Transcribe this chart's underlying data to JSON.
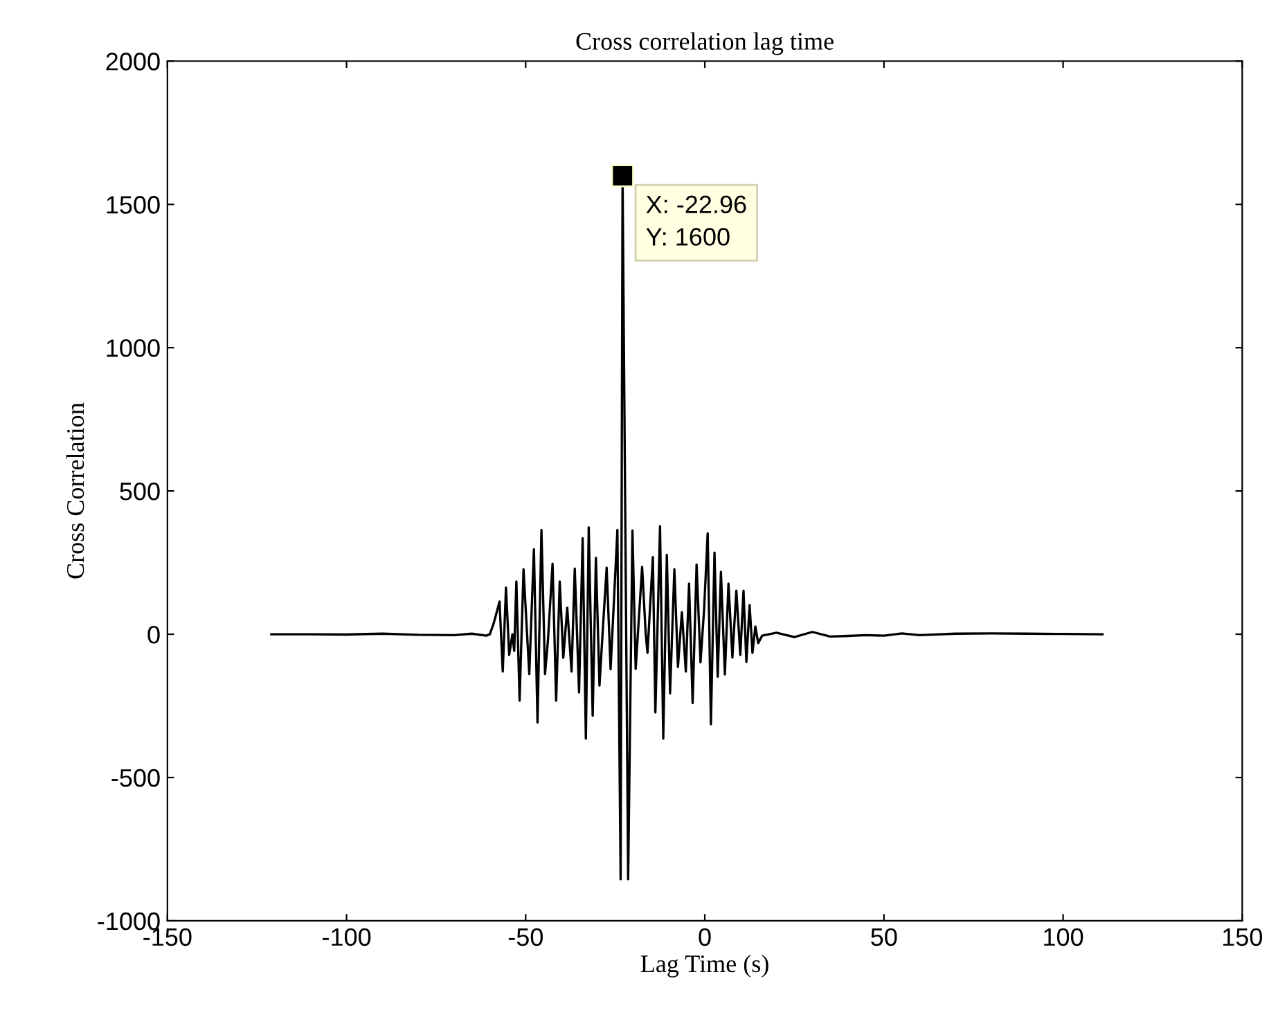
{
  "chart_data": {
    "type": "line",
    "title": "Cross correlation lag time",
    "xlabel": "Lag Time (s)",
    "ylabel": "Cross Correlation",
    "series": [
      {
        "color": "#000000",
        "x": [
          -121,
          -110,
          -100,
          -90,
          -80,
          -70,
          -65,
          -61,
          -60,
          -58.9,
          -57.3,
          -56.4,
          -55.5,
          -54.6,
          -53.7,
          -53.2,
          -52.6,
          -51.7,
          -50.6,
          -49.0,
          -47.7,
          -46.7,
          -45.6,
          -44.6,
          -43.8,
          -42.5,
          -41.5,
          -40.5,
          -39.5,
          -38.4,
          -37.2,
          -36.3,
          -35.1,
          -34.1,
          -33.2,
          -32.4,
          -31.3,
          -30.4,
          -29.4,
          -28.5,
          -27.4,
          -26.3,
          -24.4,
          -23.5,
          -22.96,
          -21.4,
          -20.2,
          -19.3,
          -17.5,
          -16.5,
          -16.0,
          -14.5,
          -13.8,
          -12.5,
          -11.6,
          -10.6,
          -9.7,
          -8.5,
          -7.5,
          -6.4,
          -5.3,
          -4.4,
          -3.4,
          -2.3,
          -1.2,
          -0.2,
          0.8,
          1.7,
          2.7,
          3.6,
          4.5,
          5.6,
          6.6,
          7.7,
          8.8,
          9.9,
          10.8,
          11.6,
          12.5,
          13.3,
          14.1,
          14.9,
          16.0,
          20,
          25,
          30,
          35,
          40,
          45,
          50,
          55,
          60,
          70,
          80,
          90,
          100,
          111
        ],
        "values": [
          0,
          0,
          -1,
          2,
          -2,
          -3,
          2,
          -5,
          0,
          39,
          114,
          -130,
          163,
          -72,
          0,
          -58,
          184,
          -232,
          227,
          -139,
          296,
          -308,
          364,
          -139,
          -24,
          246,
          -232,
          184,
          -82,
          93,
          -130,
          229,
          -203,
          335,
          -364,
          373,
          -284,
          267,
          -179,
          10,
          232,
          -122,
          364,
          -855,
          1600,
          -855,
          362,
          -121,
          235,
          2,
          -65,
          269,
          -273,
          377,
          -364,
          277,
          -206,
          227,
          -114,
          77,
          -130,
          177,
          -240,
          243,
          -98,
          86,
          352,
          -314,
          285,
          -148,
          218,
          -140,
          177,
          -81,
          152,
          -72,
          152,
          -97,
          102,
          -65,
          27,
          -31,
          -5,
          5,
          -10,
          8,
          -8,
          -6,
          -3,
          -5,
          3,
          -3,
          2,
          3,
          2,
          1,
          0
        ]
      }
    ],
    "xlim": [
      -150,
      150
    ],
    "xticks": [
      -150,
      -100,
      -50,
      0,
      50,
      100,
      150
    ],
    "ylim": [
      -1000,
      2000
    ],
    "yticks": [
      -1000,
      -500,
      0,
      500,
      1000,
      1500,
      2000
    ],
    "grid": false,
    "legend": false,
    "marker": "none",
    "line_style": "solid",
    "annotations": [
      {
        "text": "X: -22.96\nY: 1600",
        "x": -22.96,
        "y": 1600
      }
    ]
  }
}
